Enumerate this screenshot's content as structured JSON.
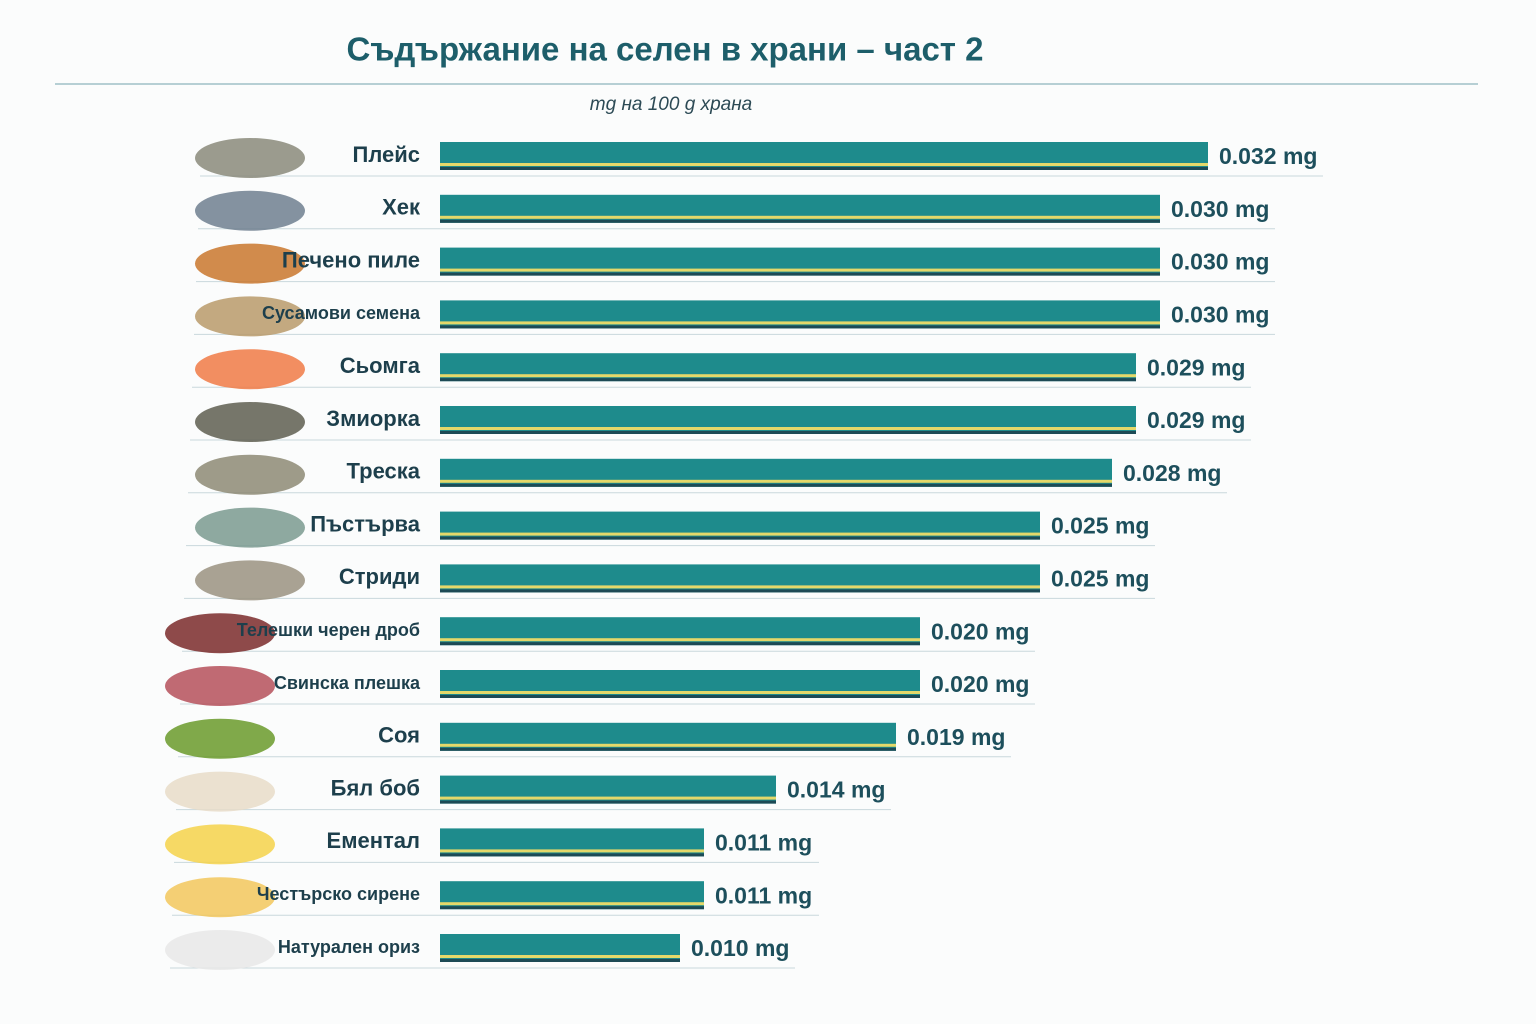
{
  "chart_data": {
    "type": "hbar",
    "title": "Съдържание на селен в храни – част 2",
    "subtitle": "mg на 100 g храна",
    "categories": [
      "Плейс",
      "Хек",
      "Печено пиле",
      "Сусамови семена",
      "Сьомга",
      "Змиорка",
      "Треска",
      "Пъстърва",
      "Стриди",
      "Телешки черен дроб",
      "Свинска плешка",
      "Соя",
      "Бял боб",
      "Ементал",
      "Честърско сирене",
      "Натурален ориз"
    ],
    "values": [
      0.032,
      0.03,
      0.03,
      0.03,
      0.029,
      0.029,
      0.028,
      0.025,
      0.025,
      0.02,
      0.02,
      0.019,
      0.014,
      0.011,
      0.011,
      0.01
    ],
    "value_labels": [
      "0.032 mg",
      "0.030 mg",
      "0.030 mg",
      "0.030 mg",
      "0.029 mg",
      "0.029 mg",
      "0.028 mg",
      "0.025 mg",
      "0.025 mg",
      "0.020 mg",
      "0.020 mg",
      "0.019 mg",
      "0.014 mg",
      "0.011 mg",
      "0.011 mg",
      "0.010 mg"
    ],
    "color": "#1e8b8c"
  }
}
